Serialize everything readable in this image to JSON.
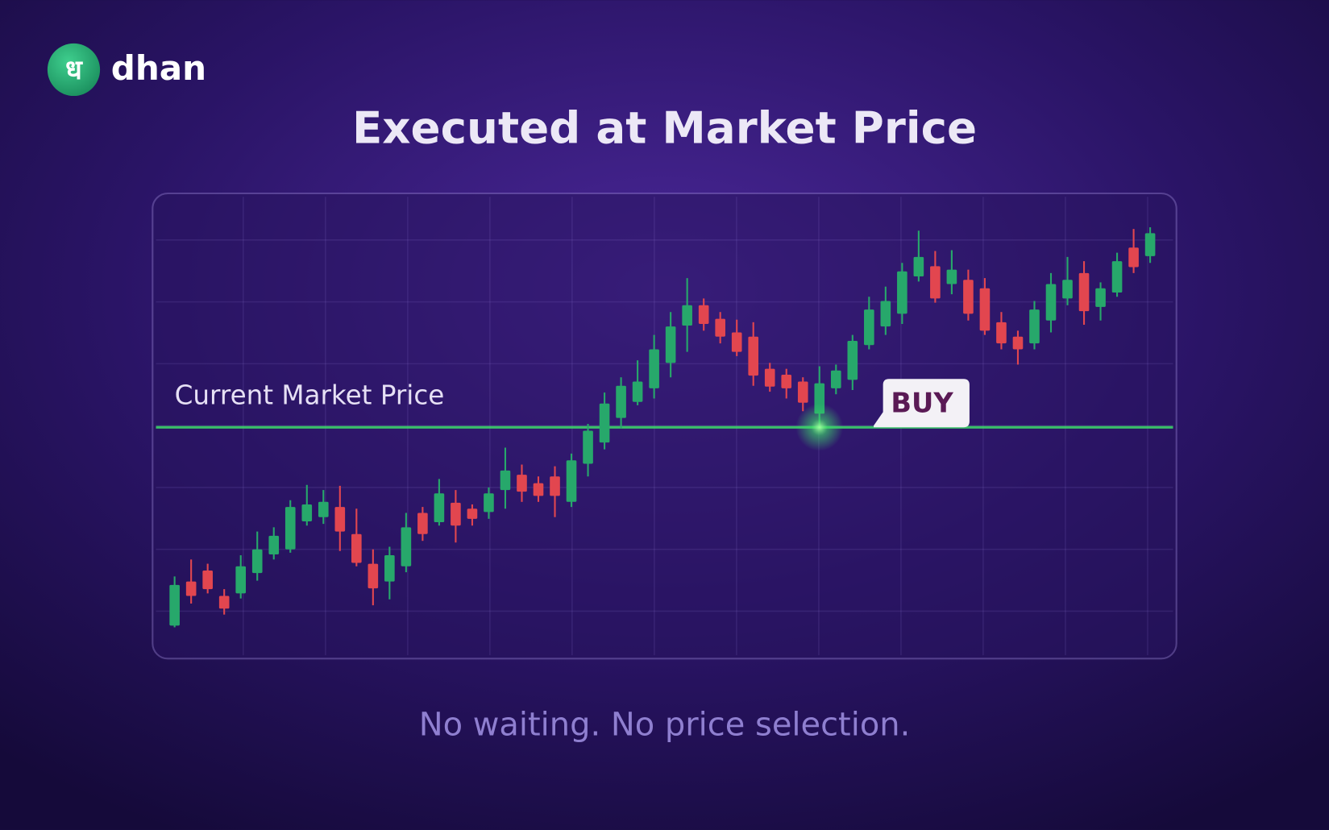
{
  "brand": {
    "icon": "ध",
    "name": "dhan"
  },
  "chart_data": {
    "type": "candlestick",
    "title": "Executed at Market Price",
    "subtitle": "No waiting. No price selection.",
    "price_line": {
      "label": "Current Market Price",
      "value": 296,
      "color": "#3ddc6a"
    },
    "annotation": {
      "text": "BUY",
      "index": 39
    },
    "up_color": "#27a86b",
    "down_color": "#e2464f",
    "open": [
      62,
      114,
      127,
      97,
      100,
      124,
      146,
      152,
      185,
      190,
      202,
      170,
      135,
      114,
      132,
      195,
      184,
      207,
      200,
      196,
      222,
      240,
      230,
      238,
      208,
      253,
      278,
      307,
      326,
      342,
      372,
      416,
      440,
      424,
      408,
      403,
      365,
      358,
      350,
      312,
      342,
      352,
      393,
      415,
      430,
      474,
      486,
      465,
      470,
      460,
      420,
      403,
      395,
      422,
      448,
      478,
      438,
      455,
      508,
      498
    ],
    "high": [
      120,
      140,
      135,
      105,
      145,
      173,
      178,
      210,
      228,
      222,
      227,
      200,
      152,
      155,
      195,
      202,
      235,
      222,
      205,
      225,
      272,
      252,
      238,
      250,
      265,
      300,
      337,
      355,
      375,
      405,
      432,
      472,
      448,
      432,
      423,
      420,
      372,
      365,
      355,
      368,
      370,
      405,
      450,
      462,
      490,
      528,
      504,
      505,
      482,
      472,
      432,
      410,
      445,
      478,
      497,
      492,
      467,
      502,
      530,
      532
    ],
    "low": [
      60,
      88,
      100,
      75,
      94,
      115,
      140,
      148,
      180,
      182,
      150,
      132,
      86,
      93,
      125,
      162,
      180,
      160,
      180,
      188,
      200,
      208,
      208,
      190,
      202,
      238,
      270,
      295,
      322,
      330,
      355,
      385,
      410,
      395,
      380,
      345,
      338,
      330,
      315,
      295,
      335,
      340,
      388,
      405,
      418,
      468,
      443,
      453,
      422,
      405,
      388,
      370,
      388,
      408,
      440,
      417,
      422,
      450,
      478,
      490
    ],
    "close": [
      110,
      97,
      105,
      82,
      132,
      152,
      168,
      202,
      205,
      208,
      173,
      136,
      106,
      145,
      178,
      170,
      218,
      180,
      188,
      218,
      245,
      220,
      215,
      215,
      257,
      292,
      324,
      345,
      350,
      388,
      415,
      440,
      418,
      403,
      385,
      357,
      344,
      342,
      325,
      348,
      363,
      398,
      435,
      445,
      480,
      497,
      448,
      482,
      430,
      410,
      395,
      388,
      435,
      465,
      470,
      433,
      460,
      492,
      485,
      525
    ]
  }
}
